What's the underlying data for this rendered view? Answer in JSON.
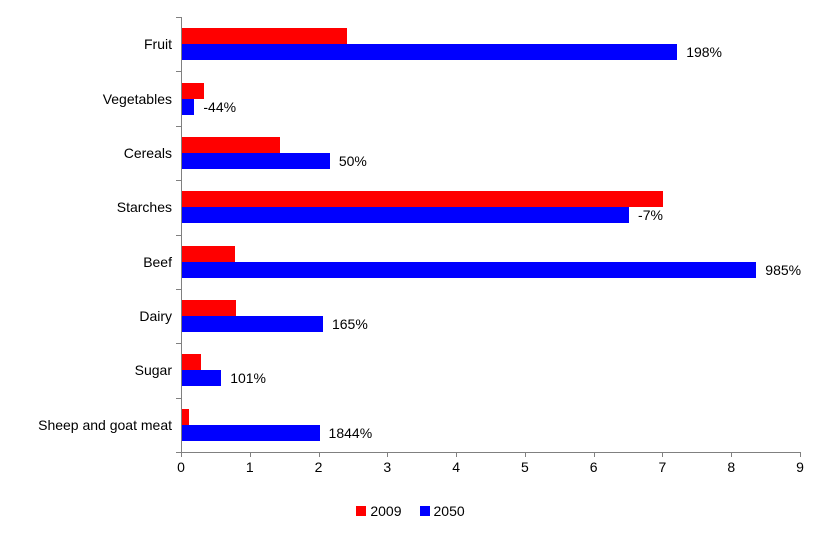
{
  "chart_data": {
    "type": "bar",
    "orientation": "horizontal",
    "title": "",
    "xlabel": "",
    "ylabel": "",
    "categories": [
      "Fruit",
      "Vegetables",
      "Cereals",
      "Starches",
      "Beef",
      "Dairy",
      "Sugar",
      "Sheep and goat meat"
    ],
    "series": [
      {
        "name": "2009",
        "color": "#ff0000",
        "values": [
          2.4,
          0.32,
          1.43,
          7.0,
          0.77,
          0.78,
          0.28,
          0.1
        ]
      },
      {
        "name": "2050",
        "color": "#0000ff",
        "values": [
          7.2,
          0.18,
          2.15,
          6.5,
          8.35,
          2.05,
          0.57,
          2.0
        ]
      }
    ],
    "bar_labels": [
      "198%",
      "-44%",
      "50%",
      "-7%",
      "985%",
      "165%",
      "101%",
      "1844%"
    ],
    "bar_label_series": "2050",
    "xlim": [
      0,
      9
    ],
    "x_ticks": [
      "0",
      "1",
      "2",
      "3",
      "4",
      "5",
      "6",
      "7",
      "8",
      "9"
    ],
    "grid": "off",
    "legend_position": "bottom",
    "axis_color": "#808080",
    "text_color": "#000000",
    "background_color": "#ffffff"
  }
}
